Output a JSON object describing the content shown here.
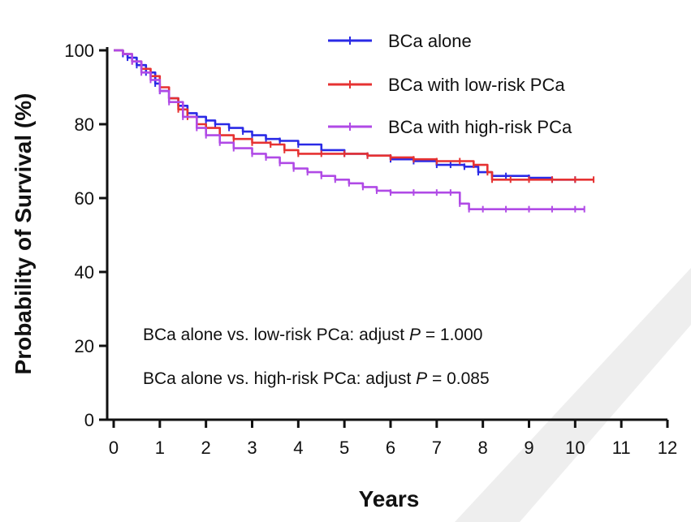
{
  "chart_data": {
    "type": "line",
    "xlabel": "Years",
    "ylabel": "Probability of Survival (%)",
    "xlim": [
      0,
      12
    ],
    "ylim": [
      0,
      100
    ],
    "xticks": [
      "0",
      "1",
      "2",
      "3",
      "4",
      "5",
      "6",
      "7",
      "8",
      "9",
      "10",
      "11",
      "12"
    ],
    "yticks": [
      "0",
      "20",
      "40",
      "60",
      "80",
      "100"
    ],
    "grid": false,
    "legend_position": "top-right",
    "series": [
      {
        "name": "BCa alone",
        "color": "#2a2ae6",
        "x": [
          0,
          0.1,
          0.2,
          0.3,
          0.5,
          0.7,
          0.9,
          1.0,
          1.2,
          1.4,
          1.6,
          1.8,
          2.0,
          2.2,
          2.5,
          2.8,
          3.0,
          3.3,
          3.6,
          4.0,
          4.5,
          5.0,
          5.5,
          6.0,
          6.5,
          7.0,
          7.3,
          7.6,
          7.9,
          8.2,
          8.5,
          9.0,
          9.5,
          10.0
        ],
        "y": [
          100,
          100,
          99,
          98,
          96,
          94,
          91,
          89,
          87,
          85,
          83,
          82,
          81,
          80,
          79,
          78,
          77,
          76,
          75.5,
          74.5,
          73,
          72,
          71.5,
          70.5,
          70,
          69,
          69,
          68.5,
          67,
          66,
          66,
          65.5,
          65,
          65
        ]
      },
      {
        "name": "BCa with low-risk PCa",
        "color": "#e63232",
        "x": [
          0,
          0.2,
          0.4,
          0.6,
          0.8,
          1.0,
          1.2,
          1.4,
          1.6,
          1.8,
          2.0,
          2.3,
          2.6,
          3.0,
          3.4,
          3.7,
          4.0,
          4.5,
          5.0,
          5.5,
          6.0,
          6.5,
          7.0,
          7.5,
          7.8,
          8.1,
          8.2,
          8.6,
          9.0,
          9.5,
          10.0,
          10.4
        ],
        "y": [
          100,
          99,
          97,
          95,
          93,
          90,
          87,
          84,
          82,
          80,
          79,
          77,
          76,
          75,
          74.5,
          73,
          72,
          72,
          72,
          71.5,
          71,
          70.5,
          70,
          70,
          69,
          67,
          65,
          65,
          65,
          65,
          65,
          65
        ]
      },
      {
        "name": "BCa with high-risk PCa",
        "color": "#b04ae6",
        "x": [
          0,
          0.2,
          0.4,
          0.6,
          0.8,
          1.0,
          1.2,
          1.5,
          1.8,
          2.0,
          2.3,
          2.6,
          3.0,
          3.3,
          3.6,
          3.9,
          4.2,
          4.5,
          4.8,
          5.1,
          5.4,
          5.7,
          6.0,
          6.5,
          7.0,
          7.3,
          7.5,
          7.7,
          8.0,
          8.5,
          9.0,
          9.5,
          10.0,
          10.2
        ],
        "y": [
          100,
          99,
          97,
          94,
          92,
          89,
          86,
          82,
          79,
          77,
          75,
          73.5,
          72,
          71,
          69.5,
          68,
          67,
          66,
          65,
          64,
          63,
          62,
          61.5,
          61.5,
          61.5,
          61.5,
          58.5,
          57,
          57,
          57,
          57,
          57,
          57,
          57
        ]
      }
    ],
    "annotations": [
      {
        "prefix": "BCa alone vs. low-risk PCa: adjust ",
        "symbol": "P",
        "suffix": " = 1.000"
      },
      {
        "prefix": "BCa alone vs. high-risk PCa: adjust ",
        "symbol": "P",
        "suffix": " = 0.085"
      }
    ]
  },
  "watermark_color": "#e0e0e0"
}
